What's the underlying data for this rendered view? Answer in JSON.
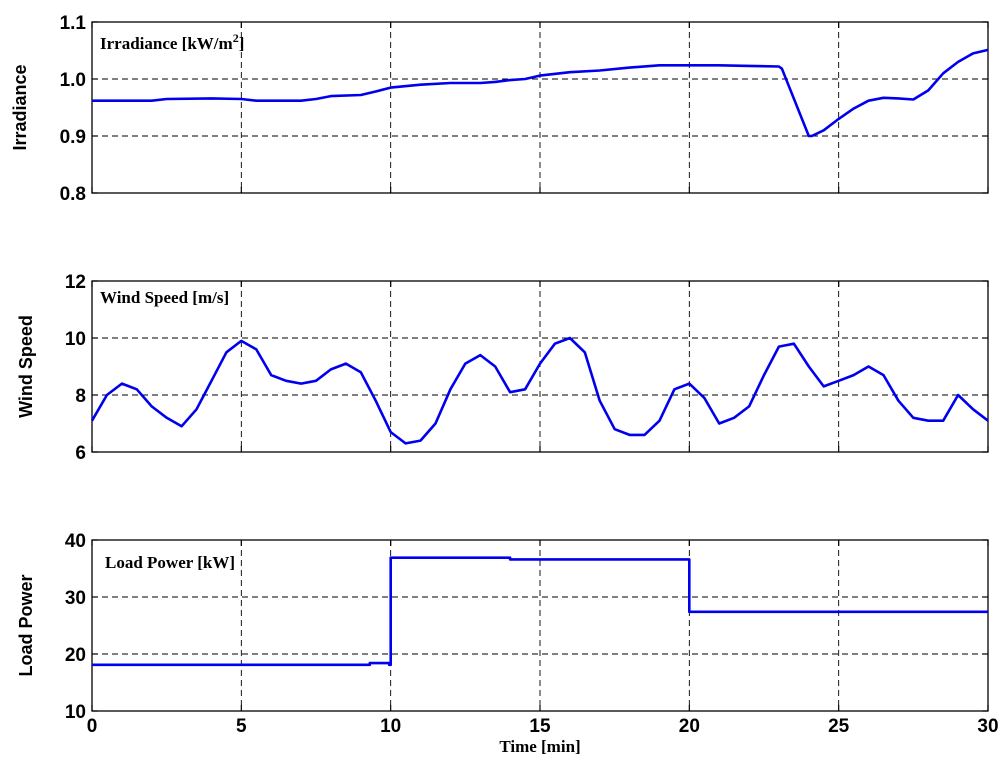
{
  "colors": {
    "series": "#0000ee",
    "axes": "#000000",
    "background": "#ffffff"
  },
  "xlabel": "Time [min]",
  "chart_data": [
    {
      "type": "line",
      "ylabel": "Irradiance",
      "annotation": "Irradiance [kW/m",
      "annotation_sup": "2",
      "annotation_tail": "]",
      "xlim": [
        0,
        30
      ],
      "ylim": [
        0.8,
        1.1
      ],
      "xticks": [
        0,
        5,
        10,
        15,
        20,
        25,
        30
      ],
      "yticks": [
        0.8,
        0.9,
        1.0,
        1.1
      ],
      "ytick_labels": [
        "0.8",
        "0.9",
        "1.0",
        "1.1"
      ],
      "grid": true,
      "series": [
        {
          "x": [
            0,
            2,
            2.5,
            4,
            5,
            5.5,
            7,
            7.5,
            8,
            9,
            9.5,
            10,
            11,
            12,
            13,
            13.5,
            14,
            14.5,
            15,
            16,
            17,
            18,
            19,
            20,
            21,
            22,
            23,
            23.1,
            24,
            24.1,
            24.5,
            25,
            25.5,
            26,
            26.5,
            27,
            27.5,
            28,
            28.5,
            29,
            29.5,
            30
          ],
          "y": [
            0.962,
            0.962,
            0.965,
            0.966,
            0.965,
            0.962,
            0.962,
            0.965,
            0.97,
            0.972,
            0.978,
            0.985,
            0.99,
            0.993,
            0.993,
            0.995,
            0.998,
            1.0,
            1.006,
            1.012,
            1.015,
            1.02,
            1.024,
            1.024,
            1.024,
            1.023,
            1.022,
            1.018,
            0.9,
            0.9,
            0.91,
            0.93,
            0.948,
            0.962,
            0.967,
            0.966,
            0.964,
            0.98,
            1.01,
            1.03,
            1.045,
            1.051
          ]
        }
      ]
    },
    {
      "type": "line",
      "ylabel": "Wind Speed",
      "annotation": "Wind Speed [m/s]",
      "xlim": [
        0,
        30
      ],
      "ylim": [
        6,
        12
      ],
      "xticks": [
        0,
        5,
        10,
        15,
        20,
        25,
        30
      ],
      "yticks": [
        6,
        8,
        10,
        12
      ],
      "ytick_labels": [
        "6",
        "8",
        "10",
        "12"
      ],
      "grid": true,
      "series": [
        {
          "x": [
            0,
            0.5,
            1,
            1.5,
            2,
            2.5,
            3,
            3.5,
            4,
            4.5,
            5,
            5.5,
            6,
            6.5,
            7,
            7.5,
            8,
            8.5,
            9,
            9.5,
            10,
            10.5,
            11,
            11.5,
            12,
            12.5,
            13,
            13.5,
            14,
            14.5,
            15,
            15.5,
            16,
            16.5,
            17,
            17.5,
            18,
            18.5,
            19,
            19.5,
            20,
            20.5,
            21,
            21.5,
            22,
            22.5,
            23,
            23.5,
            24,
            24.5,
            25,
            25.5,
            26,
            26.5,
            27,
            27.5,
            28,
            28.5,
            29,
            29.5,
            30
          ],
          "y": [
            7.1,
            8.0,
            8.4,
            8.2,
            7.6,
            7.2,
            6.9,
            7.5,
            8.5,
            9.5,
            9.9,
            9.6,
            8.7,
            8.5,
            8.4,
            8.5,
            8.9,
            9.1,
            8.8,
            7.8,
            6.7,
            6.3,
            6.4,
            7.0,
            8.2,
            9.1,
            9.4,
            9.0,
            8.1,
            8.2,
            9.1,
            9.8,
            10.0,
            9.5,
            7.8,
            6.8,
            6.6,
            6.6,
            7.1,
            8.2,
            8.4,
            7.9,
            7.0,
            7.2,
            7.6,
            8.7,
            9.7,
            9.8,
            9.0,
            8.3,
            8.5,
            8.7,
            9.0,
            8.7,
            7.8,
            7.2,
            7.1,
            7.1,
            8.0,
            7.5,
            7.1
          ]
        }
      ]
    },
    {
      "type": "line",
      "ylabel": "Load Power",
      "annotation": "Load Power [kW]",
      "xlim": [
        0,
        30
      ],
      "ylim": [
        10,
        40
      ],
      "xticks": [
        0,
        5,
        10,
        15,
        20,
        25,
        30
      ],
      "xtick_labels": [
        "0",
        "5",
        "10",
        "15",
        "20",
        "25",
        "30"
      ],
      "yticks": [
        10,
        20,
        30,
        40
      ],
      "ytick_labels": [
        "10",
        "20",
        "30",
        "40"
      ],
      "grid": true,
      "series": [
        {
          "x": [
            0,
            9.3,
            9.3,
            9.95,
            9.95,
            10,
            10,
            14,
            14,
            20,
            20,
            30
          ],
          "y": [
            18.1,
            18.1,
            18.4,
            18.4,
            18.1,
            18.1,
            36.9,
            36.9,
            36.6,
            36.6,
            27.4,
            27.4
          ]
        }
      ]
    }
  ]
}
